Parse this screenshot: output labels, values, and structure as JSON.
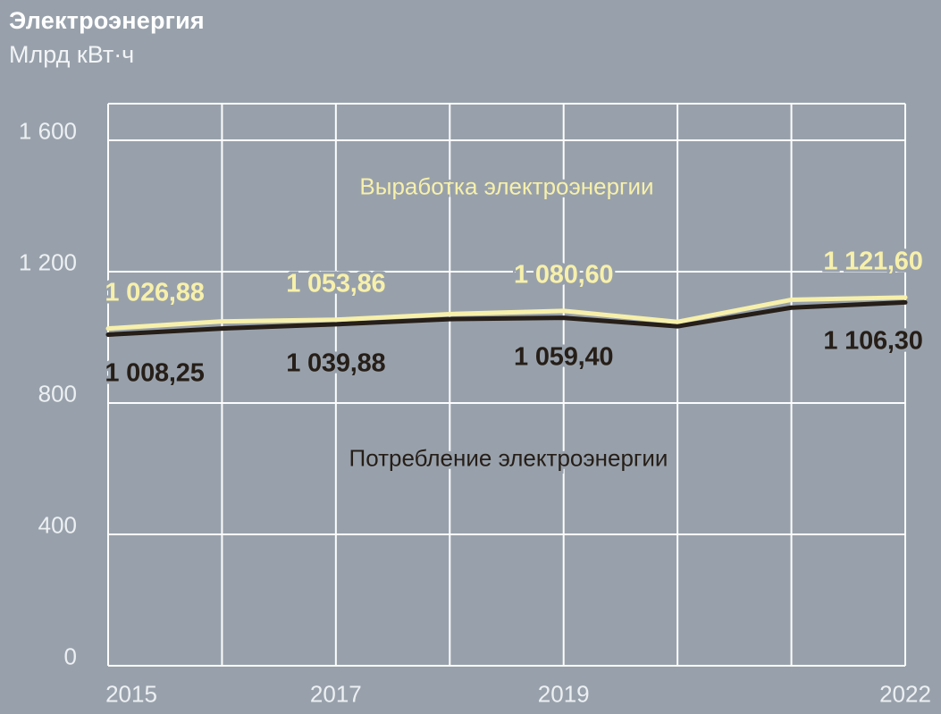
{
  "header": {
    "title": "Электроэнергия",
    "subtitle": "Млрд кВт·ч"
  },
  "colors": {
    "background": "#98a1ab",
    "grid": "#fdfdfd",
    "generation_line": "#f7f0ab",
    "consumption_line": "#261e18",
    "axis_text": "#edf0f3",
    "title_text": "#ffffff"
  },
  "chart_data": {
    "type": "line",
    "title": "Электроэнергия",
    "ylabel": "Млрд кВт·ч",
    "x": [
      2015,
      2016,
      2017,
      2018,
      2019,
      2020,
      2021,
      2022
    ],
    "x_tick_labels": [
      {
        "x": 2015,
        "label": "2015"
      },
      {
        "x": 2017,
        "label": "2017"
      },
      {
        "x": 2019,
        "label": "2019"
      },
      {
        "x": 2022,
        "label": "2022"
      }
    ],
    "y_ticks": [
      {
        "value": 0,
        "label": "0"
      },
      {
        "value": 400,
        "label": "400"
      },
      {
        "value": 800,
        "label": "800"
      },
      {
        "value": 1200,
        "label": "1 200"
      },
      {
        "value": 1600,
        "label": "1 600"
      }
    ],
    "ylim": [
      0,
      1710
    ],
    "grid": true,
    "legend_position": "inline",
    "series": [
      {
        "name": "Выработка электроэнергии",
        "color": "#f7f0ab",
        "values": [
          1026.88,
          1048.5,
          1053.86,
          1070.9,
          1080.6,
          1047.0,
          1114.5,
          1121.6
        ],
        "labeled_points": [
          {
            "x": 2015,
            "text": "1 026,88"
          },
          {
            "x": 2017,
            "text": "1 053,86"
          },
          {
            "x": 2019,
            "text": "1 080,60"
          },
          {
            "x": 2022,
            "text": "1 121,60"
          }
        ],
        "label_side": "above"
      },
      {
        "name": "Потребление электроэнергии",
        "color": "#261e18",
        "values": [
          1008.25,
          1026.9,
          1039.88,
          1055.6,
          1059.4,
          1033.7,
          1090.4,
          1106.3
        ],
        "labeled_points": [
          {
            "x": 2015,
            "text": "1 008,25"
          },
          {
            "x": 2017,
            "text": "1 039,88"
          },
          {
            "x": 2019,
            "text": "1 059,40"
          },
          {
            "x": 2022,
            "text": "1 106,30"
          }
        ],
        "label_side": "below"
      }
    ]
  }
}
